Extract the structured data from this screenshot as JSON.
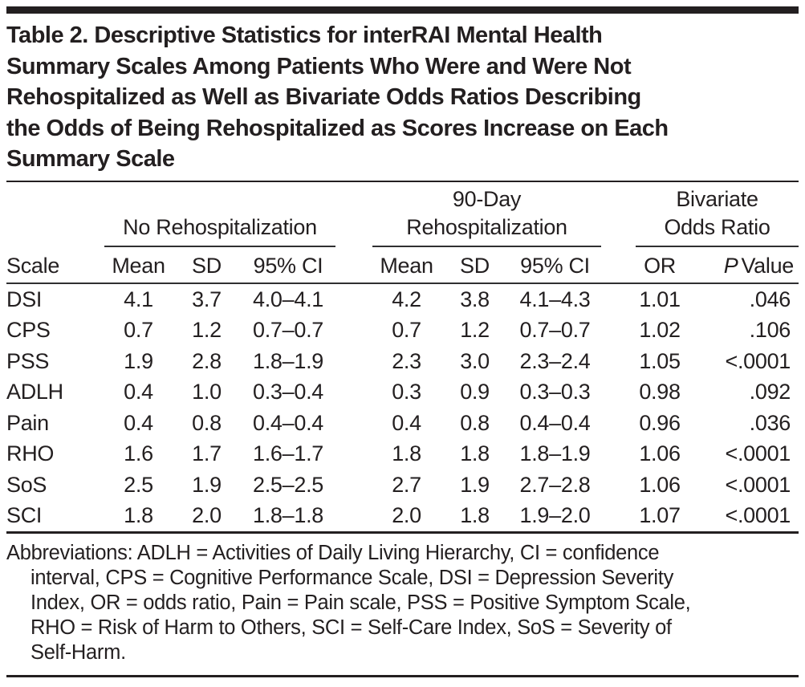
{
  "colors": {
    "ink": "#231f20",
    "background": "#ffffff"
  },
  "title_lines": [
    "Table 2. Descriptive Statistics for interRAI Mental Health",
    "Summary Scales Among Patients Who Were and Were Not",
    "Rehospitalized as Well as Bivariate Odds Ratios Describing",
    "the Odds of Being Rehospitalized as Scores Increase on Each",
    "Summary Scale"
  ],
  "table": {
    "groups": [
      {
        "lines": [
          "No Rehospitalization"
        ]
      },
      {
        "lines": [
          "90-Day",
          "Rehospitalization"
        ]
      },
      {
        "lines": [
          "Bivariate",
          "Odds Ratio"
        ]
      }
    ],
    "subheaders": {
      "scale": "Scale",
      "mean": "Mean",
      "sd": "SD",
      "ci": "95% CI",
      "or": "OR",
      "p_italic": "P",
      "p_rest": "Value"
    },
    "rows": [
      {
        "scale": "DSI",
        "no_mean": "4.1",
        "no_sd": "3.7",
        "no_ci": "4.0–4.1",
        "re_mean": "4.2",
        "re_sd": "3.8",
        "re_ci": "4.1–4.3",
        "or": "1.01",
        "p": ".046"
      },
      {
        "scale": "CPS",
        "no_mean": "0.7",
        "no_sd": "1.2",
        "no_ci": "0.7–0.7",
        "re_mean": "0.7",
        "re_sd": "1.2",
        "re_ci": "0.7–0.7",
        "or": "1.02",
        "p": ".106"
      },
      {
        "scale": "PSS",
        "no_mean": "1.9",
        "no_sd": "2.8",
        "no_ci": "1.8–1.9",
        "re_mean": "2.3",
        "re_sd": "3.0",
        "re_ci": "2.3–2.4",
        "or": "1.05",
        "p": "<.0001"
      },
      {
        "scale": "ADLH",
        "no_mean": "0.4",
        "no_sd": "1.0",
        "no_ci": "0.3–0.4",
        "re_mean": "0.3",
        "re_sd": "0.9",
        "re_ci": "0.3–0.3",
        "or": "0.98",
        "p": ".092"
      },
      {
        "scale": "Pain",
        "no_mean": "0.4",
        "no_sd": "0.8",
        "no_ci": "0.4–0.4",
        "re_mean": "0.4",
        "re_sd": "0.8",
        "re_ci": "0.4–0.4",
        "or": "0.96",
        "p": ".036"
      },
      {
        "scale": "RHO",
        "no_mean": "1.6",
        "no_sd": "1.7",
        "no_ci": "1.6–1.7",
        "re_mean": "1.8",
        "re_sd": "1.8",
        "re_ci": "1.8–1.9",
        "or": "1.06",
        "p": "<.0001"
      },
      {
        "scale": "SoS",
        "no_mean": "2.5",
        "no_sd": "1.9",
        "no_ci": "2.5–2.5",
        "re_mean": "2.7",
        "re_sd": "1.9",
        "re_ci": "2.7–2.8",
        "or": "1.06",
        "p": "<.0001"
      },
      {
        "scale": "SCI",
        "no_mean": "1.8",
        "no_sd": "2.0",
        "no_ci": "1.8–1.8",
        "re_mean": "2.0",
        "re_sd": "1.8",
        "re_ci": "1.9–2.0",
        "or": "1.07",
        "p": "<.0001"
      }
    ]
  },
  "footnote_lines": [
    "Abbreviations: ADLH = Activities of Daily Living Hierarchy, CI = confidence",
    "interval, CPS = Cognitive Performance Scale, DSI = Depression Severity",
    "Index, OR = odds ratio, Pain = Pain scale, PSS = Positive Symptom Scale,",
    "RHO = Risk of Harm to Others, SCI = Self-Care Index, SoS = Severity of",
    "Self-Harm."
  ]
}
